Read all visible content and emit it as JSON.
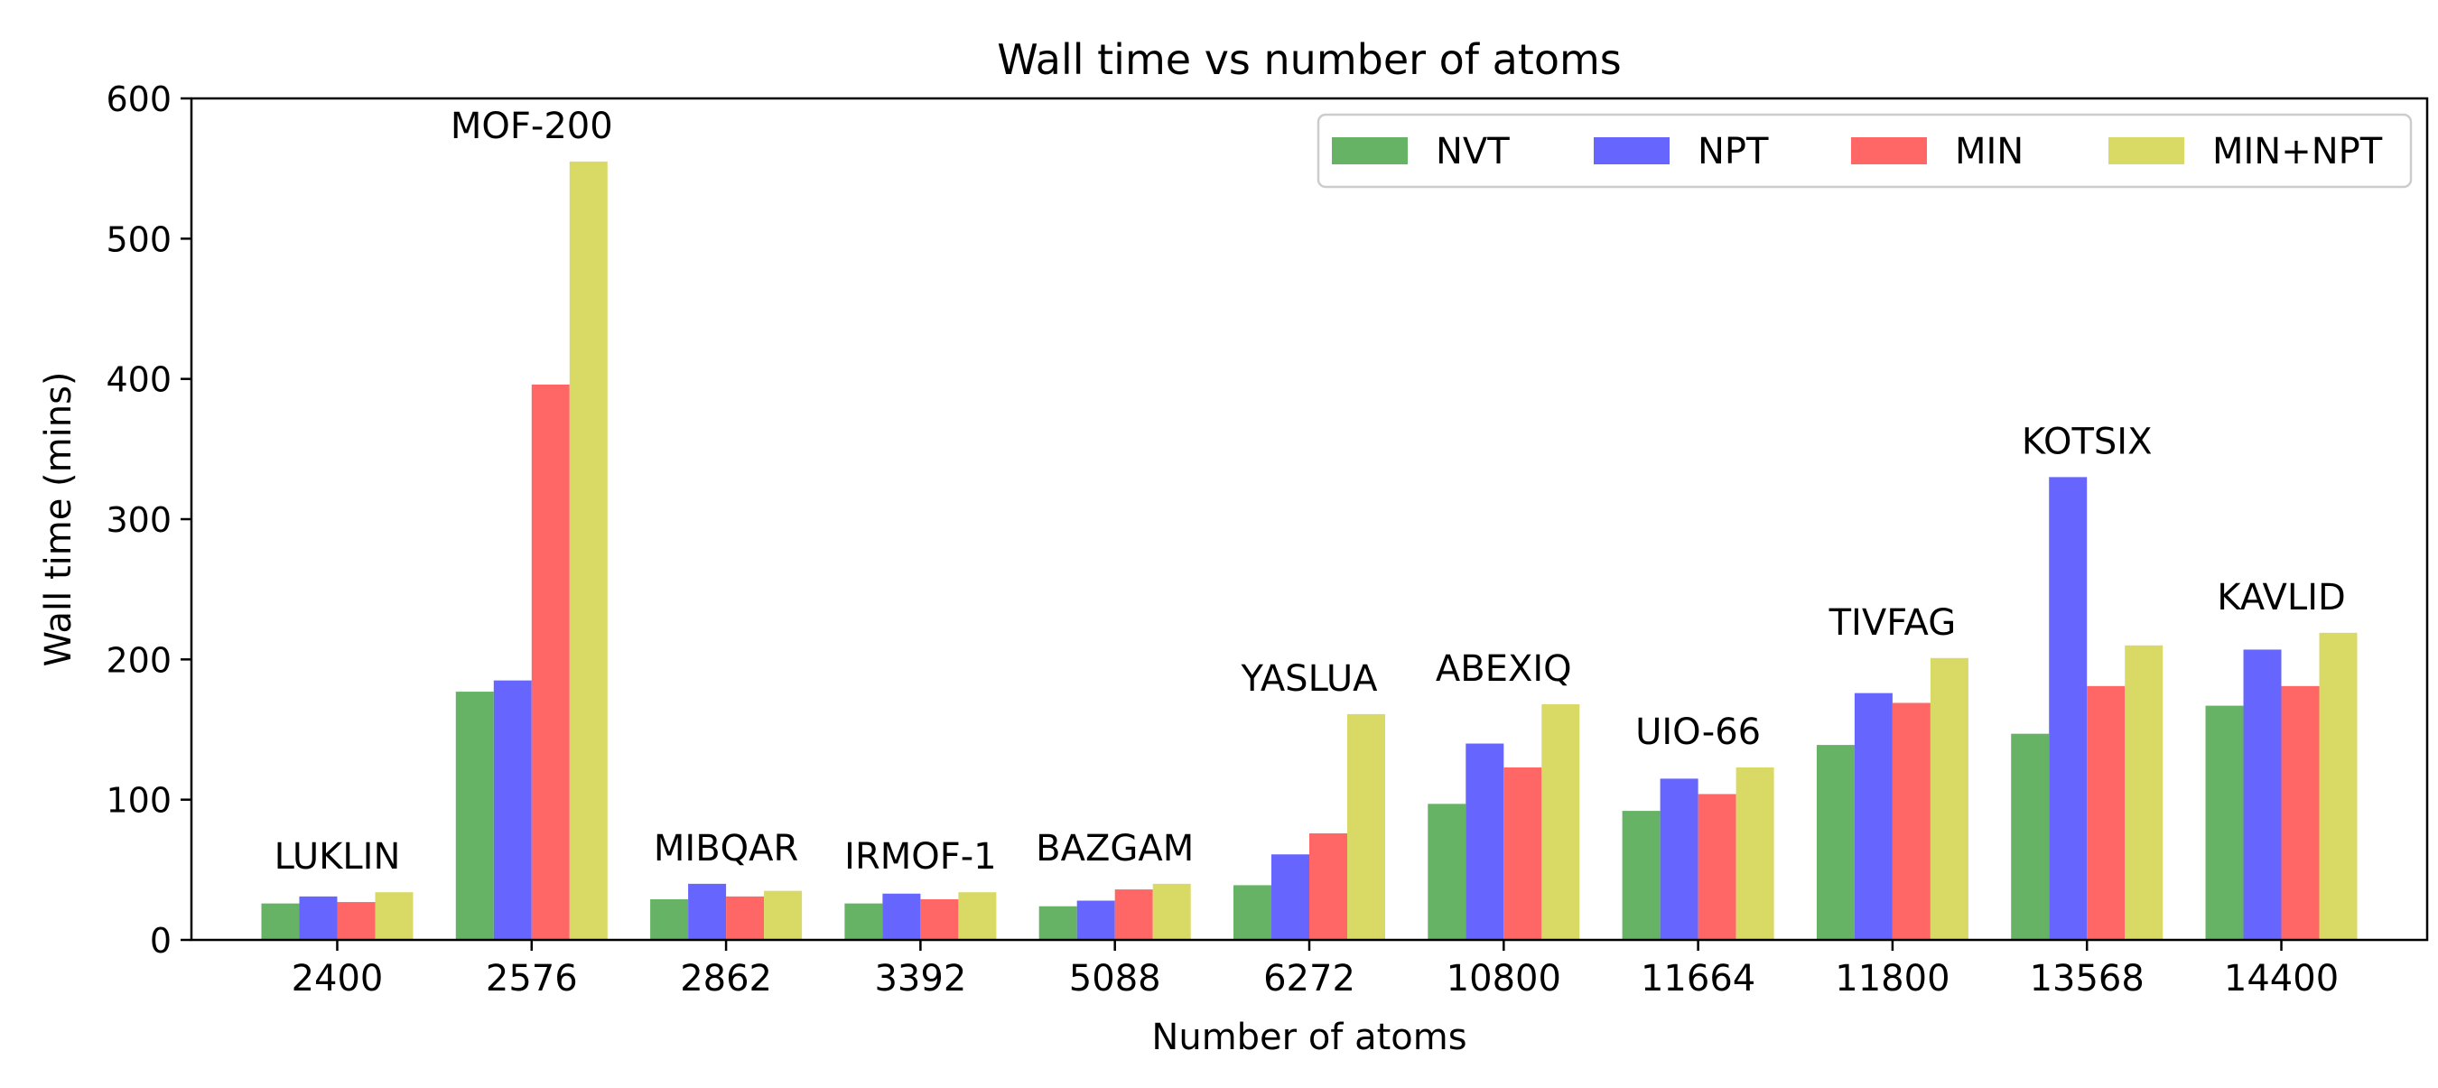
{
  "chart_data": {
    "type": "bar",
    "title": "Wall time vs number of atoms",
    "xlabel": "Number of atoms",
    "ylabel": "Wall time (mins)",
    "ylim": [
      0,
      600
    ],
    "yticks": [
      0,
      100,
      200,
      300,
      400,
      500,
      600
    ],
    "grid": false,
    "legend_position": "top-right",
    "categories": [
      "2400",
      "2576",
      "2862",
      "3392",
      "5088",
      "6272",
      "10800",
      "11664",
      "11800",
      "13568",
      "14400"
    ],
    "group_labels": [
      "LUKLIN",
      "MOF-200",
      "MIBQAR",
      "IRMOF-1",
      "BAZGAM",
      "YASLUA",
      "ABEXIQ",
      "UIO-66",
      "TIVFAG",
      "KOTSIX",
      "KAVLID"
    ],
    "series": [
      {
        "name": "NVT",
        "color": "#66b366",
        "values": [
          26,
          177,
          29,
          26,
          24,
          39,
          97,
          92,
          139,
          147,
          167
        ]
      },
      {
        "name": "NPT",
        "color": "#6666ff",
        "values": [
          31,
          185,
          40,
          33,
          28,
          61,
          140,
          115,
          176,
          330,
          207
        ]
      },
      {
        "name": "MIN",
        "color": "#ff6666",
        "values": [
          27,
          396,
          31,
          29,
          36,
          76,
          123,
          104,
          169,
          181,
          181
        ]
      },
      {
        "name": "MIN+NPT",
        "color": "#d9d966",
        "values": [
          34,
          555,
          35,
          34,
          40,
          161,
          168,
          123,
          201,
          210,
          219
        ]
      }
    ]
  }
}
